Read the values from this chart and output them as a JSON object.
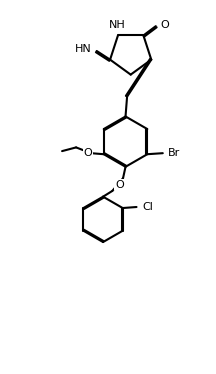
{
  "background_color": "#ffffff",
  "line_color": "#000000",
  "line_width": 1.5,
  "font_size": 8,
  "figsize": [
    2.16,
    3.74
  ],
  "dpi": 100,
  "xlim": [
    0,
    10
  ],
  "ylim": [
    0,
    18
  ]
}
